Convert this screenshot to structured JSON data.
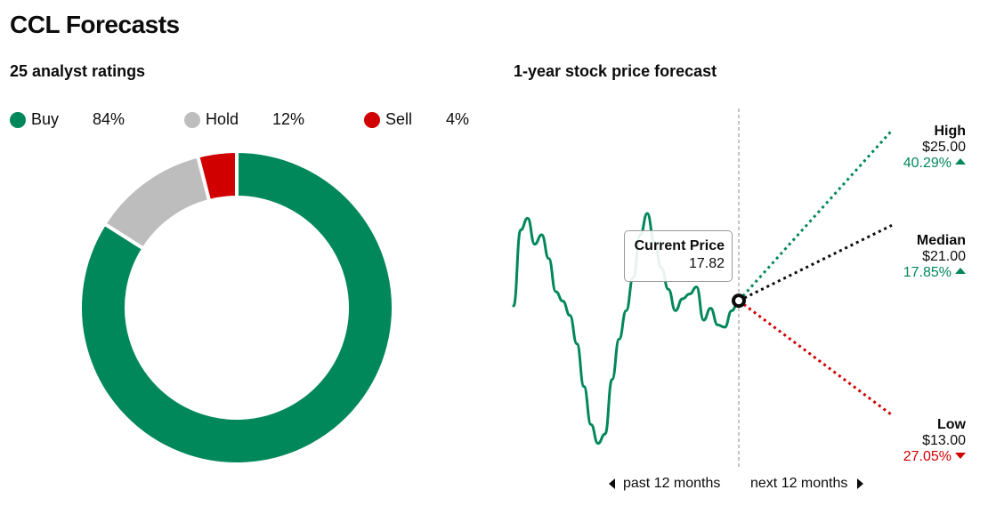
{
  "page": {
    "title": "CCL Forecasts"
  },
  "ratings": {
    "title": "25 analyst ratings",
    "legend": [
      {
        "label": "Buy",
        "pct": "84%",
        "color": "#00875a"
      },
      {
        "label": "Hold",
        "pct": "12%",
        "color": "#bdbdbd"
      },
      {
        "label": "Sell",
        "pct": "4%",
        "color": "#d10000"
      }
    ]
  },
  "forecast": {
    "title": "1-year stock price forecast",
    "current": {
      "label": "Current Price",
      "value": "17.82"
    },
    "high": {
      "label": "High",
      "price": "$25.00",
      "pct": "40.29%",
      "direction": "up"
    },
    "median": {
      "label": "Median",
      "price": "$21.00",
      "pct": "17.85%",
      "direction": "up"
    },
    "low": {
      "label": "Low",
      "price": "$13.00",
      "pct": "27.05%",
      "direction": "down"
    },
    "past_label": "past 12 months",
    "next_label": "next 12 months"
  },
  "chart_data": [
    {
      "type": "pie",
      "title": "25 analyst ratings",
      "categories": [
        "Buy",
        "Hold",
        "Sell"
      ],
      "values": [
        84,
        12,
        4
      ],
      "colors": [
        "#00875a",
        "#bdbdbd",
        "#d10000"
      ],
      "donut": true,
      "legend_placement": "top"
    },
    {
      "type": "line",
      "title": "1-year stock price forecast",
      "series": [
        {
          "color": "#00875a",
          "values": [
            17.6,
            20.8,
            21.3,
            20.2,
            20.6,
            19.6,
            18.2,
            17.8,
            17.2,
            16.0,
            14.2,
            12.6,
            11.8,
            12.2,
            14.5,
            16.2,
            17.4,
            18.8,
            20.6,
            21.5,
            20.3,
            19.2,
            18.3,
            17.4,
            17.9,
            18.1,
            18.4,
            17.0,
            17.5,
            16.8,
            16.7,
            17.4,
            17.82
          ]
        }
      ],
      "forecast": {
        "current": 17.82,
        "high": 25.0,
        "median": 21.0,
        "low": 13.0
      },
      "forecast_colors": {
        "high": "#00875a",
        "median": "#0c0c0c",
        "low": "#d10000"
      },
      "ylim": [
        11,
        26
      ],
      "grid": false
    }
  ]
}
